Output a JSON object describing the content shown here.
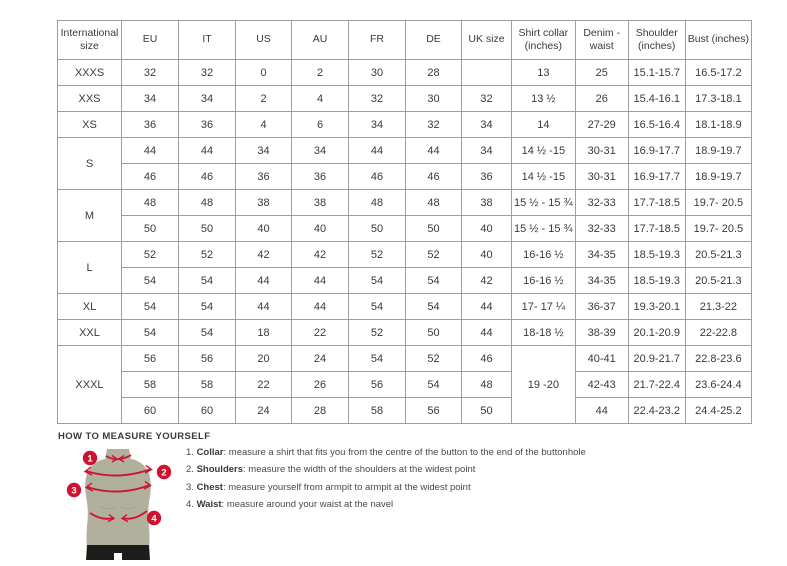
{
  "table": {
    "headers": [
      "International size",
      "EU",
      "IT",
      "US",
      "AU",
      "FR",
      "DE",
      "UK size",
      "Shirt collar (inches)",
      "Denim - waist",
      "Shoulder (inches)",
      "Bust (inches)"
    ],
    "rows": [
      {
        "size": "XXXS",
        "sizeSpan": 1,
        "values": [
          "32",
          "32",
          "0",
          "2",
          "30",
          "28",
          ""
        ],
        "collar": "13",
        "collarSpan": 1,
        "tail": [
          "25",
          "15.1-15.7",
          "16.5-17.2"
        ]
      },
      {
        "size": "XXS",
        "sizeSpan": 1,
        "values": [
          "34",
          "34",
          "2",
          "4",
          "32",
          "30",
          "32"
        ],
        "collar": "13 ½",
        "collarSpan": 1,
        "tail": [
          "26",
          "15.4-16.1",
          "17.3-18.1"
        ]
      },
      {
        "size": "XS",
        "sizeSpan": 1,
        "values": [
          "36",
          "36",
          "4",
          "6",
          "34",
          "32",
          "34"
        ],
        "collar": "14",
        "collarSpan": 1,
        "tail": [
          "27-29",
          "16.5-16.4",
          "18.1-18.9"
        ]
      },
      {
        "size": "S",
        "sizeSpan": 2,
        "values": [
          "44",
          "44",
          "34",
          "34",
          "44",
          "44",
          "34"
        ],
        "collar": "14 ½ -15",
        "collarSpan": 1,
        "tail": [
          "30-31",
          "16.9-17.7",
          "18.9-19.7"
        ]
      },
      {
        "values": [
          "46",
          "46",
          "36",
          "36",
          "46",
          "46",
          "36"
        ],
        "collar": "14 ½ -15",
        "collarSpan": 1,
        "tail": [
          "30-31",
          "16.9-17.7",
          "18.9-19.7"
        ]
      },
      {
        "size": "M",
        "sizeSpan": 2,
        "values": [
          "48",
          "48",
          "38",
          "38",
          "48",
          "48",
          "38"
        ],
        "collar": "15 ½ - 15 ¾",
        "collarSpan": 1,
        "tail": [
          "32-33",
          "17.7-18.5",
          "19.7- 20.5"
        ]
      },
      {
        "values": [
          "50",
          "50",
          "40",
          "40",
          "50",
          "50",
          "40"
        ],
        "collar": "15 ½ - 15 ¾",
        "collarSpan": 1,
        "tail": [
          "32-33",
          "17.7-18.5",
          "19.7- 20.5"
        ]
      },
      {
        "size": "L",
        "sizeSpan": 2,
        "values": [
          "52",
          "52",
          "42",
          "42",
          "52",
          "52",
          "40"
        ],
        "collar": "16-16 ½",
        "collarSpan": 1,
        "tail": [
          "34-35",
          "18.5-19.3",
          "20.5-21.3"
        ]
      },
      {
        "values": [
          "54",
          "54",
          "44",
          "44",
          "54",
          "54",
          "42"
        ],
        "collar": "16-16 ½",
        "collarSpan": 1,
        "tail": [
          "34-35",
          "18.5-19.3",
          "20.5-21.3"
        ]
      },
      {
        "size": "XL",
        "sizeSpan": 1,
        "values": [
          "54",
          "54",
          "44",
          "44",
          "54",
          "54",
          "44"
        ],
        "collar": "17- 17 ¼",
        "collarSpan": 1,
        "tail": [
          "36-37",
          "19.3-20.1",
          "21.3-22"
        ]
      },
      {
        "size": "XXL",
        "sizeSpan": 1,
        "values": [
          "54",
          "54",
          "18",
          "22",
          "52",
          "50",
          "44"
        ],
        "collar": "18-18 ½",
        "collarSpan": 1,
        "tail": [
          "38-39",
          "20.1-20.9",
          "22-22.8"
        ]
      },
      {
        "size": "XXXL",
        "sizeSpan": 3,
        "values": [
          "56",
          "56",
          "20",
          "24",
          "54",
          "52",
          "46"
        ],
        "collar": "19 -20",
        "collarSpan": 3,
        "tail": [
          "40-41",
          "20.9-21.7",
          "22.8-23.6"
        ]
      },
      {
        "values": [
          "58",
          "58",
          "22",
          "26",
          "56",
          "54",
          "48"
        ],
        "tail": [
          "42-43",
          "21.7-22.4",
          "23.6-24.4"
        ]
      },
      {
        "values": [
          "60",
          "60",
          "24",
          "28",
          "58",
          "56",
          "50"
        ],
        "tail": [
          "44",
          "22.4-23.2",
          "24.4-25.2"
        ]
      }
    ]
  },
  "measure_guide": {
    "heading": "HOW TO MEASURE YOURSELF",
    "steps": [
      {
        "num": "1.",
        "label": "Collar",
        "rest": ": measure a shirt that fits you from the centre of the button to the end of the buttonhole"
      },
      {
        "num": "2.",
        "label": "Shoulders",
        "rest": ": measure the width of the shoulders at the widest point"
      },
      {
        "num": "3.",
        "label": "Chest",
        "rest": ": measure yourself from armpit to armpit at the widest point"
      },
      {
        "num": "4.",
        "label": "Waist",
        "rest": ": measure around your waist at the navel"
      }
    ],
    "markers": [
      "1",
      "2",
      "3",
      "4"
    ]
  },
  "colors": {
    "accent_red": "#ce1230",
    "mannequin_body": "#b1b09d",
    "mannequin_shorts": "#1c1c1a",
    "table_border": "#9d9d9c",
    "text": "#3a3a39"
  }
}
